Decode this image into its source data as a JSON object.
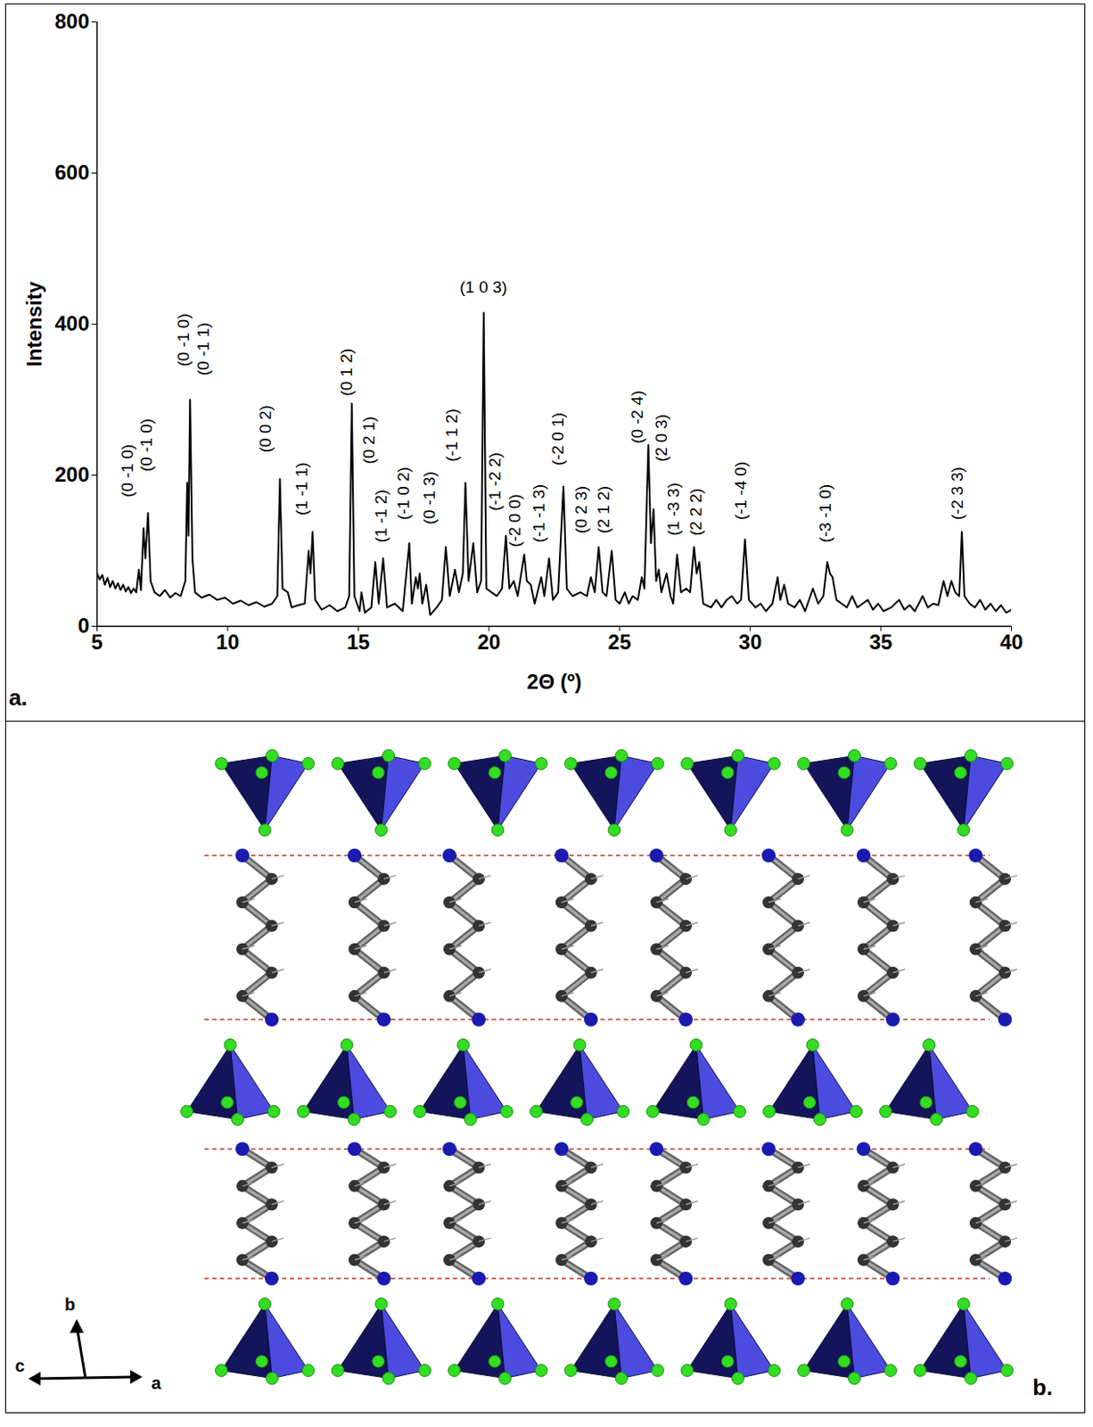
{
  "chart_data": {
    "type": "line",
    "panel_label": "a.",
    "x_label": "2Θ (º)",
    "y_label": "Intensity",
    "xlim": [
      5,
      40
    ],
    "xticks": [
      5,
      10,
      15,
      20,
      25,
      30,
      35,
      40
    ],
    "ylim": [
      0,
      800
    ],
    "yticks": [
      0,
      200,
      400,
      600,
      800
    ],
    "grid": false,
    "color": "#000000",
    "x": [
      5.0,
      5.1,
      5.2,
      5.3,
      5.4,
      5.5,
      5.6,
      5.7,
      5.8,
      5.9,
      6.0,
      6.1,
      6.2,
      6.3,
      6.4,
      6.5,
      6.6,
      6.68,
      6.78,
      6.85,
      6.95,
      7.05,
      7.2,
      7.4,
      7.6,
      7.8,
      8.0,
      8.2,
      8.38,
      8.45,
      8.5,
      8.56,
      8.65,
      8.75,
      9.0,
      9.3,
      9.6,
      9.9,
      10.2,
      10.5,
      10.8,
      11.1,
      11.4,
      11.7,
      11.9,
      12.0,
      12.1,
      12.3,
      12.45,
      12.7,
      12.95,
      13.1,
      13.17,
      13.25,
      13.35,
      13.6,
      13.9,
      14.2,
      14.5,
      14.65,
      14.75,
      14.85,
      15.05,
      15.12,
      15.25,
      15.5,
      15.65,
      15.78,
      15.95,
      16.1,
      16.4,
      16.7,
      16.95,
      17.05,
      17.2,
      17.28,
      17.35,
      17.45,
      17.6,
      17.75,
      18.0,
      18.2,
      18.35,
      18.5,
      18.7,
      18.85,
      19.0,
      19.1,
      19.22,
      19.4,
      19.55,
      19.7,
      19.8,
      19.9,
      20.1,
      20.3,
      20.5,
      20.65,
      20.78,
      20.95,
      21.1,
      21.35,
      21.45,
      21.6,
      21.75,
      22.0,
      22.12,
      22.3,
      22.45,
      22.65,
      22.85,
      22.98,
      23.2,
      23.5,
      23.75,
      23.9,
      24.05,
      24.2,
      24.35,
      24.5,
      24.7,
      24.85,
      25.0,
      25.2,
      25.35,
      25.5,
      25.7,
      25.85,
      25.95,
      26.1,
      26.2,
      26.3,
      26.4,
      26.5,
      26.6,
      26.8,
      26.95,
      27.05,
      27.2,
      27.35,
      27.55,
      27.7,
      27.85,
      27.95,
      28.05,
      28.2,
      28.5,
      28.7,
      28.9,
      29.1,
      29.3,
      29.5,
      29.65,
      29.8,
      29.95,
      30.2,
      30.4,
      30.6,
      30.85,
      31.05,
      31.15,
      31.3,
      31.45,
      31.7,
      31.9,
      32.1,
      32.4,
      32.6,
      32.8,
      32.95,
      33.05,
      33.15,
      33.3,
      33.5,
      33.7,
      33.9,
      34.1,
      34.3,
      34.5,
      34.7,
      34.9,
      35.1,
      35.4,
      35.7,
      35.9,
      36.1,
      36.3,
      36.6,
      36.8,
      37.0,
      37.2,
      37.4,
      37.55,
      37.7,
      37.85,
      38.0,
      38.1,
      38.2,
      38.4,
      38.6,
      38.8,
      39.0,
      39.2,
      39.4,
      39.6,
      39.8,
      40.0
    ],
    "values": [
      70,
      62,
      68,
      55,
      64,
      52,
      60,
      50,
      57,
      48,
      55,
      46,
      52,
      44,
      50,
      45,
      75,
      48,
      130,
      90,
      150,
      60,
      45,
      40,
      48,
      38,
      44,
      40,
      60,
      190,
      120,
      300,
      90,
      45,
      38,
      42,
      35,
      38,
      30,
      34,
      28,
      32,
      26,
      30,
      40,
      195,
      50,
      45,
      25,
      28,
      30,
      100,
      70,
      125,
      35,
      22,
      28,
      20,
      25,
      40,
      295,
      40,
      20,
      45,
      18,
      25,
      85,
      30,
      90,
      25,
      30,
      20,
      110,
      30,
      65,
      50,
      70,
      30,
      55,
      15,
      25,
      35,
      105,
      40,
      75,
      45,
      70,
      190,
      60,
      110,
      45,
      60,
      415,
      50,
      45,
      40,
      50,
      120,
      50,
      60,
      40,
      95,
      60,
      55,
      30,
      65,
      40,
      90,
      35,
      45,
      185,
      50,
      40,
      45,
      40,
      65,
      45,
      105,
      45,
      40,
      100,
      35,
      30,
      45,
      30,
      40,
      35,
      65,
      50,
      240,
      110,
      155,
      60,
      75,
      45,
      70,
      40,
      30,
      95,
      45,
      50,
      45,
      105,
      70,
      85,
      30,
      25,
      35,
      25,
      35,
      40,
      30,
      35,
      115,
      35,
      25,
      30,
      20,
      30,
      65,
      35,
      55,
      30,
      25,
      35,
      20,
      50,
      30,
      40,
      85,
      70,
      65,
      35,
      30,
      25,
      40,
      25,
      30,
      35,
      22,
      30,
      20,
      25,
      35,
      22,
      28,
      20,
      40,
      25,
      30,
      28,
      60,
      40,
      60,
      45,
      40,
      125,
      40,
      30,
      25,
      35,
      22,
      30,
      20,
      28,
      18,
      22
    ],
    "annotations": [
      {
        "text": "(0 -1 0)",
        "x": 6.16,
        "y": 171
      },
      {
        "text": "(0 -1 0)",
        "x": 6.88,
        "y": 205
      },
      {
        "text": "(0 -1 0)",
        "x": 8.3,
        "y": 344
      },
      {
        "text": "(0 -1 1)",
        "x": 9.06,
        "y": 332
      },
      {
        "text": "(0 0 2)",
        "x": 11.44,
        "y": 230
      },
      {
        "text": "(1 -1 1)",
        "x": 12.85,
        "y": 147
      },
      {
        "text": "(0 1 2)",
        "x": 14.57,
        "y": 305
      },
      {
        "text": "(0 2 1)",
        "x": 15.4,
        "y": 215
      },
      {
        "text": "(1 -1 2)",
        "x": 15.89,
        "y": 111
      },
      {
        "text": "(-1 0 2)",
        "x": 16.72,
        "y": 141
      },
      {
        "text": "(0 -1 3)",
        "x": 17.71,
        "y": 135
      },
      {
        "text": "(-1 1 2)",
        "x": 18.6,
        "y": 218
      },
      {
        "text": "(-1 -2 2)",
        "x": 20.25,
        "y": 153
      },
      {
        "text": "(-2 0 0)",
        "x": 21.01,
        "y": 105
      },
      {
        "text": "(-1 -1 3)",
        "x": 21.93,
        "y": 111
      },
      {
        "text": "(-2 0 1)",
        "x": 22.66,
        "y": 213
      },
      {
        "text": "(0 2 3)",
        "x": 23.55,
        "y": 123
      },
      {
        "text": "(2 1 2)",
        "x": 24.41,
        "y": 123
      },
      {
        "text": "(0 -2 4)",
        "x": 25.69,
        "y": 242
      },
      {
        "text": "(2 0 3)",
        "x": 26.62,
        "y": 218
      },
      {
        "text": "(1 -3 3)",
        "x": 27.08,
        "y": 120
      },
      {
        "text": "(2 2 2)",
        "x": 27.94,
        "y": 120
      },
      {
        "text": "(-1 -4 0)",
        "x": 29.65,
        "y": 141
      },
      {
        "text": "(-3 -1 0)",
        "x": 32.89,
        "y": 111
      },
      {
        "text": "(-2 3 3)",
        "x": 37.94,
        "y": 141
      }
    ],
    "horizontal_annotations": [
      {
        "text": "(1 0 3)",
        "x": 19.79,
        "y": 449
      }
    ]
  },
  "structure": {
    "panel_label": "b.",
    "axis_labels": {
      "up": "b",
      "left": "c",
      "right": "a"
    }
  }
}
